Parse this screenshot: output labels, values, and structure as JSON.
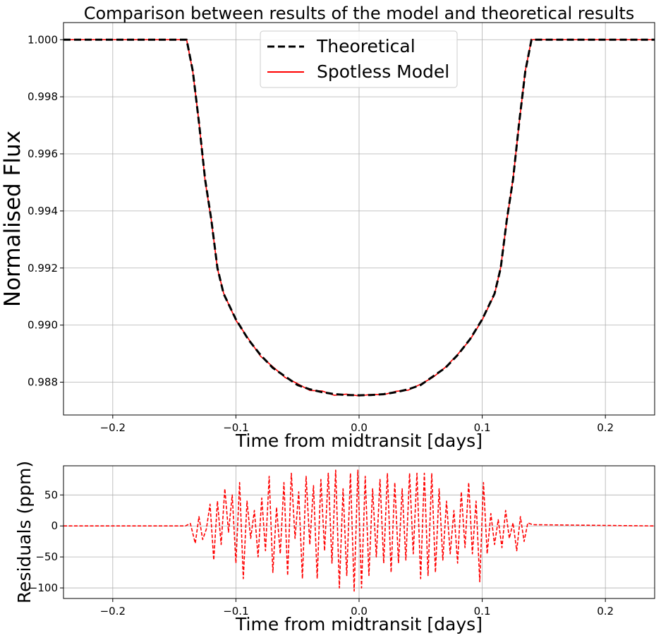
{
  "chart_data": [
    {
      "type": "line",
      "title": "Comparison between results of the model and theoretical results",
      "xlabel": "Time from midtransit [days]",
      "ylabel": "Normalised Flux",
      "xlim": [
        -0.24,
        0.24
      ],
      "ylim": [
        0.98685,
        1.0006
      ],
      "x_ticks": [
        -0.2,
        -0.1,
        0.0,
        0.1,
        0.2
      ],
      "x_tick_labels": [
        "−0.2",
        "−0.1",
        "0.0",
        "0.1",
        "0.2"
      ],
      "y_ticks": [
        0.988,
        0.99,
        0.992,
        0.994,
        0.996,
        0.998,
        1.0
      ],
      "y_tick_labels": [
        "0.988",
        "0.990",
        "0.992",
        "0.994",
        "0.996",
        "0.998",
        "1.000"
      ],
      "grid": true,
      "legend": "top-center",
      "series": [
        {
          "name": "Theoretical",
          "style": "dashed",
          "color": "#000000",
          "x": [
            -0.24,
            -0.14,
            -0.135,
            -0.13,
            -0.125,
            -0.12,
            -0.115,
            -0.11,
            -0.1,
            -0.09,
            -0.08,
            -0.07,
            -0.06,
            -0.05,
            -0.04,
            -0.03,
            -0.02,
            -0.01,
            0.0,
            0.01,
            0.02,
            0.03,
            0.04,
            0.05,
            0.06,
            0.07,
            0.08,
            0.09,
            0.1,
            0.11,
            0.115,
            0.12,
            0.125,
            0.13,
            0.135,
            0.14,
            0.24
          ],
          "y": [
            1.0,
            1.0,
            0.9989,
            0.9971,
            0.9951,
            0.9937,
            0.992,
            0.9911,
            0.9902,
            0.9895,
            0.98895,
            0.9885,
            0.9882,
            0.9879,
            0.98775,
            0.98765,
            0.98758,
            0.98755,
            0.98754,
            0.98755,
            0.98758,
            0.98765,
            0.98775,
            0.9879,
            0.9882,
            0.9885,
            0.98895,
            0.9895,
            0.9902,
            0.9911,
            0.992,
            0.9937,
            0.9951,
            0.9971,
            0.9989,
            1.0,
            1.0
          ]
        },
        {
          "name": "Spotless Model",
          "style": "solid",
          "color": "#ff0000",
          "x": [
            -0.24,
            -0.14,
            -0.135,
            -0.13,
            -0.125,
            -0.12,
            -0.115,
            -0.11,
            -0.1,
            -0.09,
            -0.08,
            -0.07,
            -0.06,
            -0.05,
            -0.04,
            -0.03,
            -0.02,
            -0.01,
            0.0,
            0.01,
            0.02,
            0.03,
            0.04,
            0.05,
            0.06,
            0.07,
            0.08,
            0.09,
            0.1,
            0.11,
            0.115,
            0.12,
            0.125,
            0.13,
            0.135,
            0.14,
            0.24
          ],
          "y": [
            1.0,
            1.0,
            0.99888,
            0.99712,
            0.99505,
            0.99368,
            0.99198,
            0.99112,
            0.99017,
            0.98953,
            0.98891,
            0.98854,
            0.98816,
            0.98795,
            0.98771,
            0.98769,
            0.98754,
            0.98758,
            0.98752,
            0.98757,
            0.98756,
            0.98768,
            0.98772,
            0.98793,
            0.98817,
            0.98852,
            0.98897,
            0.98948,
            0.99018,
            0.99108,
            0.99202,
            0.99367,
            0.99512,
            0.99708,
            0.99892,
            1.0,
            1.0
          ]
        }
      ]
    },
    {
      "type": "line",
      "title": "",
      "xlabel": "Time from midtransit [days]",
      "ylabel": "Residuals (ppm)",
      "xlim": [
        -0.24,
        0.24
      ],
      "ylim": [
        -117,
        97
      ],
      "x_ticks": [
        -0.2,
        -0.1,
        0.0,
        0.1,
        0.2
      ],
      "x_tick_labels": [
        "−0.2",
        "−0.1",
        "0.0",
        "0.1",
        "0.2"
      ],
      "y_ticks": [
        -100,
        -50,
        0,
        50
      ],
      "y_tick_labels": [
        "−100",
        "−50",
        "0",
        "50"
      ],
      "grid": true,
      "series": [
        {
          "name": "",
          "style": "dashed",
          "color": "#ff0000",
          "x": [
            -0.24,
            -0.141,
            -0.137,
            -0.133,
            -0.13,
            -0.127,
            -0.124,
            -0.121,
            -0.118,
            -0.115,
            -0.112,
            -0.109,
            -0.106,
            -0.103,
            -0.1,
            -0.097,
            -0.094,
            -0.091,
            -0.088,
            -0.085,
            -0.082,
            -0.079,
            -0.076,
            -0.073,
            -0.07,
            -0.067,
            -0.064,
            -0.061,
            -0.058,
            -0.055,
            -0.052,
            -0.049,
            -0.046,
            -0.043,
            -0.04,
            -0.037,
            -0.034,
            -0.031,
            -0.028,
            -0.025,
            -0.022,
            -0.019,
            -0.016,
            -0.013,
            -0.01,
            -0.007,
            -0.004,
            -0.001,
            0.002,
            0.005,
            0.008,
            0.011,
            0.014,
            0.017,
            0.02,
            0.023,
            0.026,
            0.029,
            0.032,
            0.035,
            0.038,
            0.041,
            0.044,
            0.047,
            0.05,
            0.053,
            0.056,
            0.059,
            0.062,
            0.065,
            0.068,
            0.071,
            0.074,
            0.077,
            0.08,
            0.083,
            0.086,
            0.089,
            0.092,
            0.095,
            0.098,
            0.101,
            0.104,
            0.107,
            0.11,
            0.113,
            0.116,
            0.119,
            0.122,
            0.125,
            0.128,
            0.131,
            0.134,
            0.137,
            0.141,
            0.24
          ],
          "y": [
            0,
            0,
            4,
            -28,
            15,
            -22,
            -5,
            35,
            -55,
            40,
            -30,
            60,
            -10,
            50,
            -60,
            70,
            -85,
            40,
            -20,
            25,
            -50,
            45,
            -40,
            80,
            -75,
            30,
            -45,
            70,
            -80,
            85,
            -20,
            55,
            -85,
            80,
            -30,
            65,
            -85,
            75,
            -40,
            85,
            -60,
            90,
            -100,
            60,
            -80,
            85,
            -105,
            90,
            -100,
            80,
            -80,
            60,
            -50,
            75,
            -60,
            85,
            -75,
            70,
            -60,
            60,
            -55,
            85,
            -45,
            85,
            -85,
            85,
            -80,
            85,
            -75,
            60,
            -55,
            40,
            -45,
            25,
            -60,
            55,
            -35,
            70,
            -45,
            40,
            -90,
            70,
            -45,
            20,
            -30,
            10,
            -35,
            25,
            -20,
            5,
            -40,
            15,
            -25,
            5,
            2,
            0
          ]
        }
      ]
    }
  ]
}
